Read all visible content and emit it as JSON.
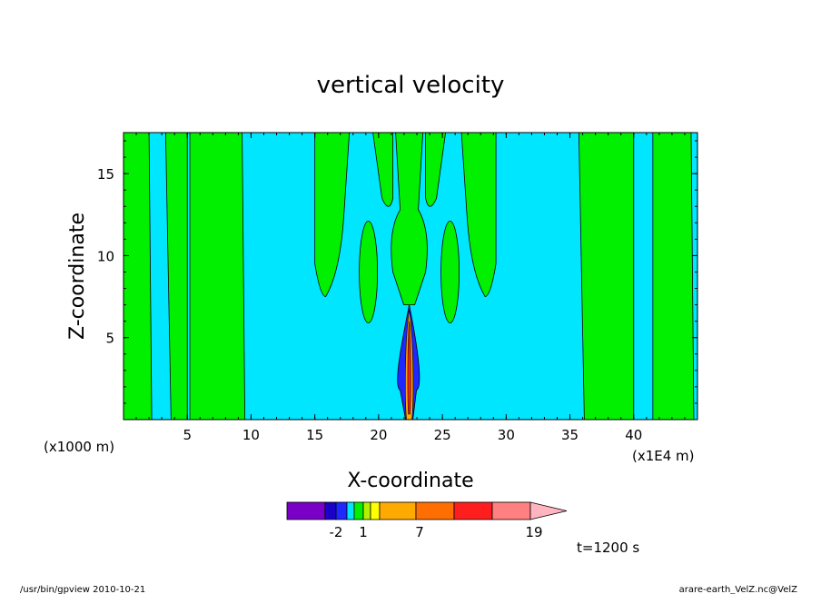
{
  "chart_data": {
    "type": "heatmap",
    "title": "vertical velocity",
    "xlabel": "X-coordinate",
    "ylabel": "Z-coordinate",
    "x_unit_note": "(x1E4 m)",
    "y_unit_note": "(x1000 m)",
    "xlim": [
      0,
      450000
    ],
    "ylim": [
      0,
      17500
    ],
    "x_ticks": [
      {
        "value": 50000,
        "label": "5"
      },
      {
        "value": 100000,
        "label": "10"
      },
      {
        "value": 150000,
        "label": "15"
      },
      {
        "value": 200000,
        "label": "20"
      },
      {
        "value": 250000,
        "label": "25"
      },
      {
        "value": 300000,
        "label": "30"
      },
      {
        "value": 350000,
        "label": "35"
      },
      {
        "value": 400000,
        "label": "40"
      }
    ],
    "y_ticks": [
      {
        "value": 5000,
        "label": "5"
      },
      {
        "value": 10000,
        "label": "10"
      },
      {
        "value": 15000,
        "label": "15"
      }
    ],
    "colorbar": {
      "colors": [
        "#7a00c8",
        "#1a00c8",
        "#1e28ff",
        "#00e6ff",
        "#00f000",
        "#b4f000",
        "#ffff00",
        "#ffaa00",
        "#ff6e00",
        "#ff1e1e",
        "#ff8080",
        "#ffb4c0"
      ],
      "labels": [
        {
          "value": -2,
          "label": "-2"
        },
        {
          "value": 1,
          "label": "1"
        },
        {
          "value": 7,
          "label": "7"
        },
        {
          "value": 19,
          "label": "19"
        }
      ]
    },
    "fields": {
      "background_color": "#00e6ff",
      "positive_band_color": "#00f000",
      "bands_x": [
        [
          0,
          20000
        ],
        [
          33000,
          50000
        ],
        [
          52000,
          93000
        ],
        [
          150000,
          215000
        ],
        [
          230000,
          292000
        ],
        [
          357000,
          400000
        ],
        [
          415000,
          445000
        ]
      ],
      "core": {
        "x": 224000,
        "z_max": 7000,
        "colors": [
          "#1e28ff",
          "#ffaa00",
          "#ff1e1e",
          "#000000"
        ]
      }
    },
    "time_label": "t=1200 s",
    "grid": false,
    "legend": "bottom colorbar"
  },
  "footer": {
    "left": "/usr/bin/gpview   2010-10-21",
    "right": "arare-earth_VelZ.nc@VelZ"
  },
  "colors": {
    "background": "#00e6ff",
    "positive": "#00f000",
    "frame": "#000000"
  }
}
